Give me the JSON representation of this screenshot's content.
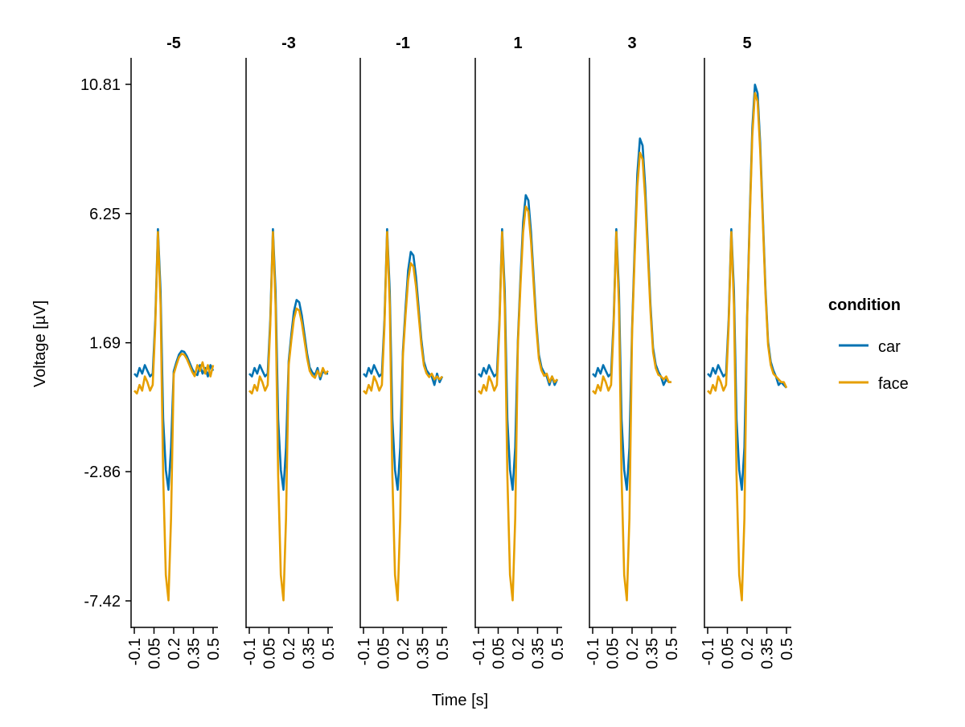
{
  "chart_data": {
    "type": "line",
    "xlabel": "Time [s]",
    "ylabel": "Voltage [µV]",
    "xlim": [
      -0.1,
      0.5
    ],
    "ylim": [
      -7.42,
      10.81
    ],
    "yticks": [
      10.81,
      6.25,
      1.69,
      -2.86,
      -7.42
    ],
    "ytick_labels": [
      "10.81",
      "6.25",
      "1.69",
      "-2.86",
      "-7.42"
    ],
    "xticks": [
      -0.1,
      0.05,
      0.2,
      0.35,
      0.5
    ],
    "xtick_labels": [
      "-0.1",
      "0.05",
      "0.2",
      "0.35",
      "0.5"
    ],
    "grid": false,
    "legend": {
      "title": "condition",
      "placement": "right",
      "entries": [
        "car",
        "face"
      ]
    },
    "colors": {
      "car": "#0072b2",
      "face": "#e69f00"
    },
    "time": [
      -0.1,
      -0.08,
      -0.06,
      -0.04,
      -0.02,
      0.0,
      0.02,
      0.04,
      0.06,
      0.08,
      0.1,
      0.12,
      0.14,
      0.16,
      0.18,
      0.2,
      0.22,
      0.24,
      0.26,
      0.28,
      0.3,
      0.32,
      0.34,
      0.36,
      0.38,
      0.4,
      0.42,
      0.44,
      0.46,
      0.48,
      0.5
    ],
    "panels": [
      {
        "title": "-5",
        "car": [
          0.6,
          0.5,
          0.8,
          0.6,
          0.9,
          0.7,
          0.5,
          0.6,
          2.5,
          5.7,
          3.5,
          -1.0,
          -2.8,
          -3.5,
          -2.0,
          0.68,
          1.0,
          1.27,
          1.4,
          1.37,
          1.22,
          1.0,
          0.77,
          0.61,
          0.55,
          0.9,
          0.6,
          0.8,
          0.5,
          0.9,
          0.7
        ],
        "face": [
          0.0,
          -0.1,
          0.2,
          0.0,
          0.5,
          0.3,
          0.0,
          0.2,
          2.3,
          5.6,
          3.0,
          -3.0,
          -6.5,
          -7.4,
          -4.5,
          0.58,
          0.9,
          1.17,
          1.3,
          1.27,
          1.12,
          0.9,
          0.67,
          0.51,
          0.9,
          0.7,
          1.0,
          0.6,
          0.9,
          0.5,
          0.9
        ]
      },
      {
        "title": "-3",
        "car": [
          0.6,
          0.5,
          0.8,
          0.6,
          0.9,
          0.7,
          0.5,
          0.6,
          2.5,
          5.7,
          3.5,
          -1.0,
          -2.8,
          -3.5,
          -2.0,
          1.04,
          1.99,
          2.8,
          3.2,
          3.12,
          2.66,
          1.99,
          1.31,
          0.82,
          0.64,
          0.55,
          0.8,
          0.4,
          0.7,
          0.6,
          0.6
        ],
        "face": [
          0.0,
          -0.1,
          0.2,
          0.0,
          0.5,
          0.3,
          0.0,
          0.2,
          2.3,
          5.6,
          3.0,
          -3.0,
          -6.5,
          -7.4,
          -4.5,
          0.9,
          1.78,
          2.53,
          2.9,
          2.83,
          2.4,
          1.78,
          1.15,
          0.7,
          0.53,
          0.45,
          0.7,
          0.5,
          0.8,
          0.6,
          0.7
        ]
      },
      {
        "title": "-1",
        "car": [
          0.6,
          0.5,
          0.8,
          0.6,
          0.9,
          0.7,
          0.5,
          0.6,
          2.5,
          5.7,
          3.5,
          -1.0,
          -2.8,
          -3.5,
          -2.0,
          1.38,
          2.92,
          4.24,
          4.9,
          4.77,
          4.02,
          2.92,
          1.82,
          1.03,
          0.72,
          0.59,
          0.5,
          0.2,
          0.6,
          0.3,
          0.5
        ],
        "face": [
          0.0,
          -0.1,
          0.2,
          0.0,
          0.5,
          0.3,
          0.0,
          0.2,
          2.3,
          5.6,
          3.0,
          -3.0,
          -6.5,
          -7.4,
          -4.5,
          1.22,
          2.66,
          3.89,
          4.5,
          4.38,
          3.68,
          2.66,
          1.63,
          0.89,
          0.61,
          0.48,
          0.6,
          0.4,
          0.5,
          0.4,
          0.5
        ]
      },
      {
        "title": "1",
        "car": [
          0.6,
          0.5,
          0.8,
          0.6,
          0.9,
          0.7,
          0.5,
          0.6,
          2.5,
          5.7,
          3.5,
          -1.0,
          -2.8,
          -3.5,
          -2.0,
          1.78,
          4.02,
          5.94,
          6.9,
          6.71,
          5.62,
          4.02,
          2.42,
          1.27,
          0.82,
          0.63,
          0.5,
          0.2,
          0.5,
          0.2,
          0.4
        ],
        "face": [
          0.0,
          -0.1,
          0.2,
          0.0,
          0.5,
          0.3,
          0.0,
          0.2,
          2.3,
          5.6,
          3.0,
          -3.0,
          -6.5,
          -7.4,
          -4.5,
          1.62,
          3.76,
          5.59,
          6.5,
          6.32,
          5.28,
          3.76,
          2.23,
          1.13,
          0.71,
          0.52,
          0.6,
          0.3,
          0.5,
          0.3,
          0.4
        ]
      },
      {
        "title": "3",
        "car": [
          0.6,
          0.5,
          0.8,
          0.6,
          0.9,
          0.7,
          0.5,
          0.6,
          2.5,
          5.7,
          3.5,
          -1.0,
          -2.8,
          -3.5,
          -2.0,
          2.18,
          5.12,
          7.64,
          8.9,
          8.65,
          7.22,
          5.12,
          3.02,
          1.51,
          0.92,
          0.67,
          0.5,
          0.2,
          0.4,
          0.3,
          0.3
        ],
        "face": [
          0.0,
          -0.1,
          0.2,
          0.0,
          0.5,
          0.3,
          0.0,
          0.2,
          2.3,
          5.6,
          3.0,
          -3.0,
          -6.5,
          -7.4,
          -4.5,
          2.0,
          4.8,
          7.2,
          8.4,
          8.16,
          6.8,
          4.8,
          2.8,
          1.36,
          0.8,
          0.56,
          0.5,
          0.4,
          0.5,
          0.3,
          0.3
        ]
      },
      {
        "title": "5",
        "car": [
          0.6,
          0.5,
          0.8,
          0.6,
          0.9,
          0.7,
          0.5,
          0.6,
          2.5,
          5.7,
          3.5,
          -1.0,
          -2.8,
          -3.5,
          -2.0,
          2.56,
          6.17,
          9.26,
          10.8,
          10.49,
          8.74,
          6.17,
          3.59,
          1.74,
          1.02,
          0.71,
          0.5,
          0.2,
          0.3,
          0.2,
          0.1
        ],
        "face": [
          0.0,
          -0.1,
          0.2,
          0.0,
          0.5,
          0.3,
          0.0,
          0.2,
          2.3,
          5.6,
          3.0,
          -3.0,
          -6.5,
          -7.4,
          -4.5,
          2.42,
          5.96,
          8.99,
          10.5,
          10.2,
          8.48,
          5.96,
          3.43,
          1.61,
          0.91,
          0.6,
          0.5,
          0.4,
          0.3,
          0.3,
          0.1
        ]
      }
    ]
  }
}
